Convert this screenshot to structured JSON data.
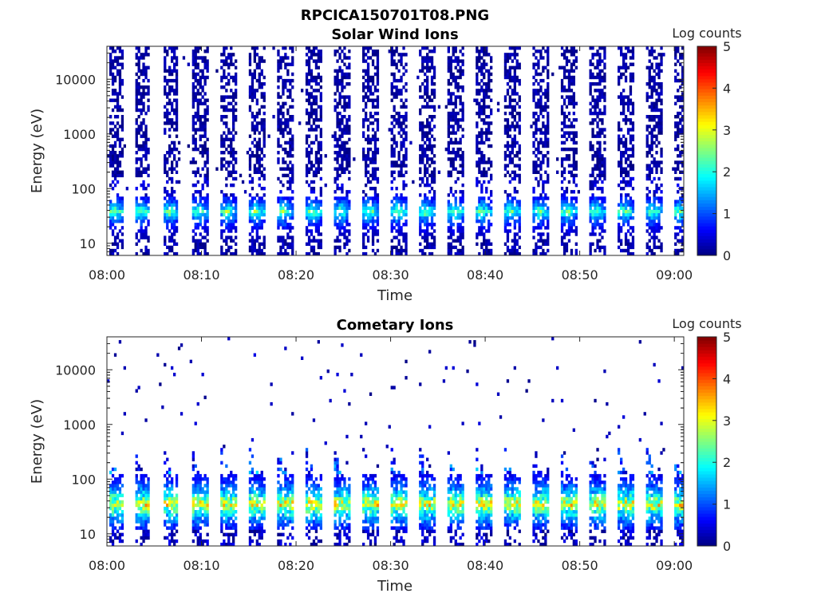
{
  "figure": {
    "title": "RPCICA150701T08.PNG",
    "background": "#ffffff"
  },
  "colormap": "jet",
  "chart_data": [
    {
      "type": "heatmap",
      "title": "Solar Wind Ions",
      "xlabel": "Time",
      "ylabel": "Energy (eV)",
      "x_tick_labels": [
        "08:00",
        "08:10",
        "08:20",
        "08:30",
        "08:40",
        "08:50",
        "09:00"
      ],
      "x_range_minutes": [
        0,
        61
      ],
      "y_scale": "log",
      "y_range": [
        6,
        40000
      ],
      "y_tick_values": [
        10,
        100,
        1000,
        10000
      ],
      "y_tick_labels": [
        "10",
        "100",
        "1000",
        "10000"
      ],
      "colorbar": {
        "label": "Log counts",
        "range": [
          0,
          5
        ],
        "ticks": [
          "0",
          "1",
          "2",
          "3",
          "4",
          "5"
        ]
      },
      "sweep_start_minutes": [
        0.1,
        2.8,
        5.9,
        9.0,
        12.0,
        15.0,
        18.0,
        21.0,
        24.0,
        27.0,
        30.0,
        33.0,
        36.0,
        39.0,
        42.0,
        45.0,
        48.0,
        51.0,
        54.0,
        57.0,
        59.8
      ],
      "peak_energy_eV": 38,
      "max_log_counts": 3.2
    },
    {
      "type": "heatmap",
      "title": "Cometary Ions",
      "xlabel": "Time",
      "ylabel": "Energy (eV)",
      "x_tick_labels": [
        "08:00",
        "08:10",
        "08:20",
        "08:30",
        "08:40",
        "08:50",
        "09:00"
      ],
      "x_range_minutes": [
        0,
        61
      ],
      "y_scale": "log",
      "y_range": [
        6,
        40000
      ],
      "y_tick_values": [
        10,
        100,
        1000,
        10000
      ],
      "y_tick_labels": [
        "10",
        "100",
        "1000",
        "10000"
      ],
      "colorbar": {
        "label": "Log counts",
        "range": [
          0,
          5
        ],
        "ticks": [
          "0",
          "1",
          "2",
          "3",
          "4",
          "5"
        ]
      },
      "sweep_start_minutes": [
        0.1,
        2.8,
        5.9,
        9.0,
        12.0,
        15.0,
        18.0,
        21.0,
        24.0,
        27.0,
        30.0,
        33.0,
        36.0,
        39.0,
        42.0,
        45.0,
        48.0,
        51.0,
        54.0,
        57.0,
        59.8
      ],
      "peak_energy_eV": 35,
      "max_log_counts": 4.0
    }
  ]
}
